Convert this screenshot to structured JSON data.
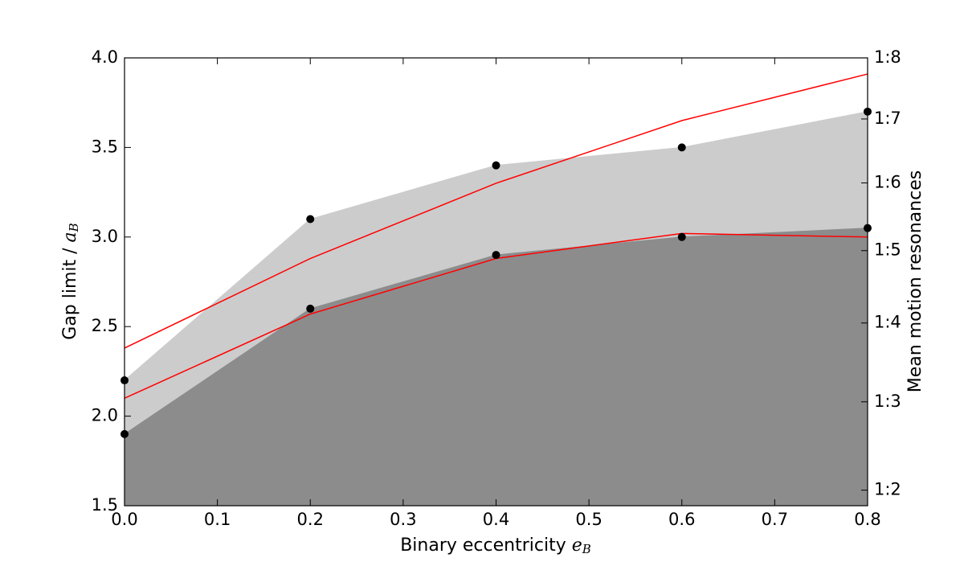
{
  "chart_data": {
    "type": "area",
    "xlabel": "Binary eccentricity",
    "xlabel_symbol": "e",
    "xlabel_subscript": "B",
    "ylabel": "Gap limit /",
    "ylabel_symbol": "a",
    "ylabel_subscript": "B",
    "y2label": "Mean motion resonances",
    "x": [
      0,
      0.2,
      0.4,
      0.6,
      0.8
    ],
    "series": [
      {
        "color": "#cccccc",
        "values": [
          2.2,
          3.1,
          3.4,
          3.5,
          3.7
        ]
      },
      {
        "color": "#8c8c8c",
        "values": [
          1.9,
          2.6,
          2.9,
          3.0,
          3.05
        ]
      }
    ],
    "marker_color": "#000000",
    "lines": [
      {
        "color": "#ff0000",
        "values": [
          2.38,
          2.88,
          3.3,
          3.65,
          3.91
        ]
      },
      {
        "color": "#ff0000",
        "values": [
          2.1,
          2.57,
          2.88,
          3.02,
          3.0
        ]
      }
    ],
    "xlim": [
      0,
      0.8
    ],
    "xticks": [
      {
        "value": 0,
        "label": "0.0"
      },
      0.1,
      0.2,
      0.3,
      0.4,
      0.5,
      0.6,
      0.7,
      0.8
    ],
    "ylim": [
      1.5,
      4.0
    ],
    "yticks": [
      1.5,
      {
        "value": 2,
        "label": "2.0"
      },
      2.5,
      {
        "value": 3,
        "label": "3.0"
      },
      3.5,
      {
        "value": 4,
        "label": "4.0"
      }
    ],
    "y2lim": [
      1.5,
      4.0
    ],
    "y2ticks": [
      {
        "value": 1.587,
        "label": "1:2"
      },
      {
        "value": 2.08,
        "label": "1:3"
      },
      {
        "value": 2.52,
        "label": "1:4"
      },
      {
        "value": 2.924,
        "label": "1:5"
      },
      {
        "value": 3.302,
        "label": "1:6"
      },
      {
        "value": 3.659,
        "label": "1:7"
      },
      {
        "value": 4.0,
        "label": "1:8"
      }
    ]
  }
}
